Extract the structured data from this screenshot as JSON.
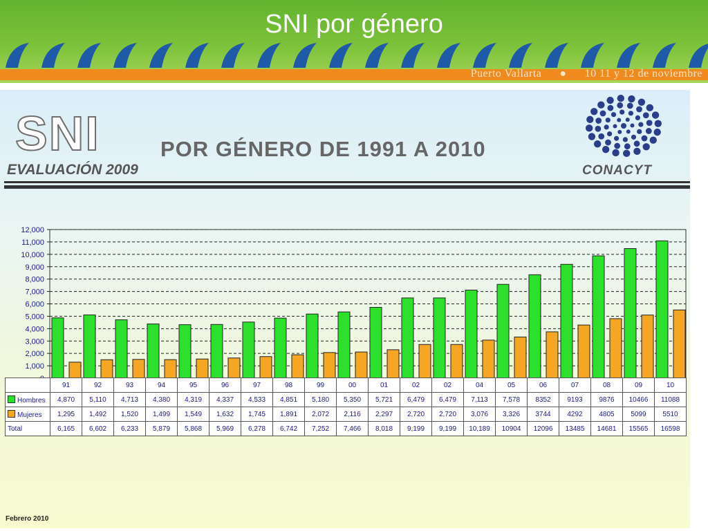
{
  "slide": {
    "title": "SNI por género",
    "event_place": "Puerto Vallarta",
    "event_dates": "10 11 y 12 de noviembre"
  },
  "header": {
    "logo_text": "SNI",
    "evaluation": "EVALUACIÓN 2009",
    "subtitle": "POR GÉNERO DE 1991 A 2010",
    "org": "CONACYT"
  },
  "colors": {
    "banner_green": "#6db832",
    "band_orange": "#f08a1e",
    "hombres": "#2ee02e",
    "mujeres": "#f5a623"
  },
  "chart_data": {
    "type": "bar",
    "categories": [
      "91",
      "92",
      "93",
      "94",
      "95",
      "96",
      "97",
      "98",
      "99",
      "00",
      "01",
      "02",
      "02",
      "04",
      "05",
      "06",
      "07",
      "08",
      "09",
      "10"
    ],
    "series": [
      {
        "name": "Hombres",
        "values": [
          4870,
          5110,
          4713,
          4380,
          4319,
          4337,
          4533,
          4851,
          5180,
          5350,
          5721,
          6479,
          6479,
          7113,
          7578,
          8352,
          9193,
          9876,
          10466,
          11088
        ],
        "labels": [
          "4,870",
          "5,110",
          "4,713",
          "4,380",
          "4,319",
          "4,337",
          "4,533",
          "4,851",
          "5,180",
          "5,350",
          "5,721",
          "6,479",
          "6,479",
          "7,113",
          "7,578",
          "8352",
          "9193",
          "9876",
          "10466",
          "11088"
        ]
      },
      {
        "name": "Mujeres",
        "values": [
          1295,
          1492,
          1520,
          1499,
          1549,
          1632,
          1745,
          1891,
          2072,
          2116,
          2297,
          2720,
          2720,
          3076,
          3326,
          3744,
          4292,
          4805,
          5099,
          5510
        ],
        "labels": [
          "1,295",
          "1,492",
          "1,520",
          "1,499",
          "1,549",
          "1,632",
          "1,745",
          "1,891",
          "2,072",
          "2,116",
          "2,297",
          "2,720",
          "2,720",
          "3,076",
          "3,326",
          "3744",
          "4292",
          "4805",
          "5099",
          "5510"
        ]
      }
    ],
    "total": {
      "name": "Total",
      "labels": [
        "6,165",
        "6,602",
        "6,233",
        "5,879",
        "5,868",
        "5,969",
        "6,278",
        "6,742",
        "7,252",
        "7,466",
        "8,018",
        "9,199",
        "9,199",
        "10,189",
        "10904",
        "12096",
        "13485",
        "14681",
        "15565",
        "16598"
      ]
    },
    "ylim": [
      0,
      12000
    ],
    "yticks": [
      "0",
      "1,000",
      "2,000",
      "3,000",
      "4,000",
      "5,000",
      "6,000",
      "7,000",
      "8,000",
      "9,000",
      "10,000",
      "11,000",
      "12,000"
    ],
    "grid": true,
    "legend": "data table"
  },
  "footer": {
    "date": "Febrero 2010"
  }
}
